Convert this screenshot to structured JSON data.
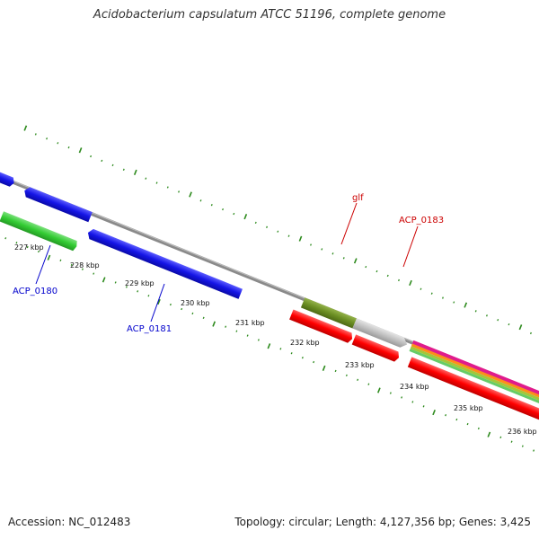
{
  "title": "Acidobacterium capsulatum ATCC 51196, complete genome",
  "footer": {
    "accession": "Accession: NC_012483",
    "summary": "Topology: circular; Length: 4,127,356 bp; Genes: 3,425"
  },
  "ticks": [
    {
      "label": "227 kbp"
    },
    {
      "label": "228 kbp"
    },
    {
      "label": "229 kbp"
    },
    {
      "label": "230 kbp"
    },
    {
      "label": "231 kbp"
    },
    {
      "label": "232 kbp"
    },
    {
      "label": "233 kbp"
    },
    {
      "label": "234 kbp"
    },
    {
      "label": "235 kbp"
    },
    {
      "label": "236 kbp"
    }
  ],
  "gene_labels": [
    {
      "name": "ACP_0180",
      "color": "#0000cc"
    },
    {
      "name": "ACP_0181",
      "color": "#0000cc"
    },
    {
      "name": "glf",
      "color": "#cc0000"
    },
    {
      "name": "ACP_0183",
      "color": "#cc0000"
    }
  ],
  "colors": {
    "backbone": "#888888",
    "tick": "#2e8b1e",
    "gene_blue": "#1515e6",
    "gene_navy": "#0a0a6e",
    "gene_green": "#33cc33",
    "gene_olive": "#6b8e23",
    "gene_red": "#ff0000",
    "gene_gray": "#c0c0c0",
    "gene_magenta": "#e01b8c",
    "gene_orange": "#ff8c1a",
    "gene_yellowgreen": "#a4c639",
    "gene_lightgreen": "#66cc66"
  }
}
